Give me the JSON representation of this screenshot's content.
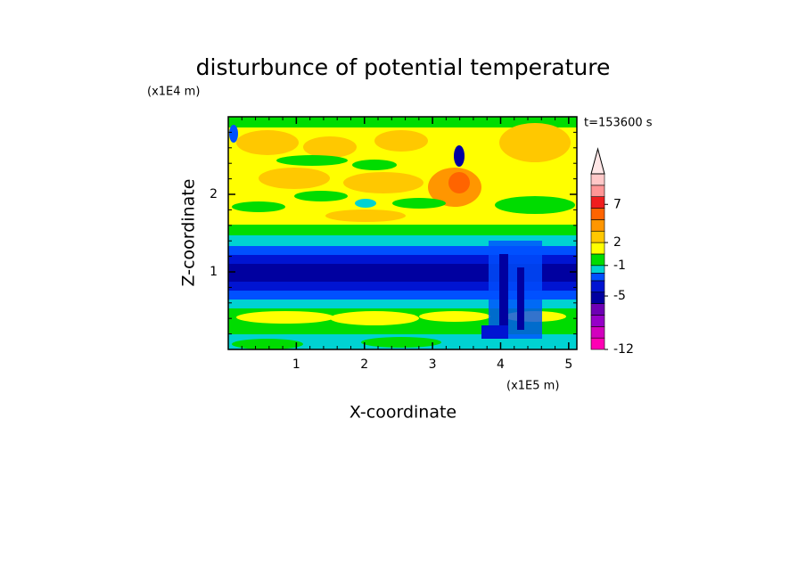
{
  "chart_data": {
    "type": "contour",
    "title": "disturbunce of potential temperature",
    "x_label": "X-coordinate",
    "y_label": "Z-coordinate",
    "x_unit": "(x1E5 m)",
    "y_unit": "(x1E4 m)",
    "time_label": "t=153600 s",
    "xlim": [
      0,
      5.12
    ],
    "ylim": [
      0,
      3
    ],
    "xticks": [
      1,
      2,
      3,
      4,
      5
    ],
    "yticks": [
      1,
      2
    ],
    "colorbar": {
      "clim": [
        -12,
        11
      ],
      "ticks": [
        -12,
        -5,
        -1,
        2,
        7
      ],
      "levels": [
        -12,
        -10.5,
        -9,
        -7.5,
        -6,
        -4.5,
        -3,
        -2,
        -1,
        0.5,
        2,
        3.5,
        5,
        6.5,
        8,
        9.5,
        11
      ],
      "colors": [
        "#ff00b4",
        "#d200be",
        "#9600c8",
        "#6e00b4",
        "#0000a0",
        "#0014d2",
        "#0050ff",
        "#00d2d2",
        "#00dc00",
        "#ffff00",
        "#ffc800",
        "#ff9600",
        "#ff6400",
        "#f01e1e",
        "#ff9696",
        "#ffc8c8"
      ],
      "over_color": "#ffe6e6"
    }
  }
}
